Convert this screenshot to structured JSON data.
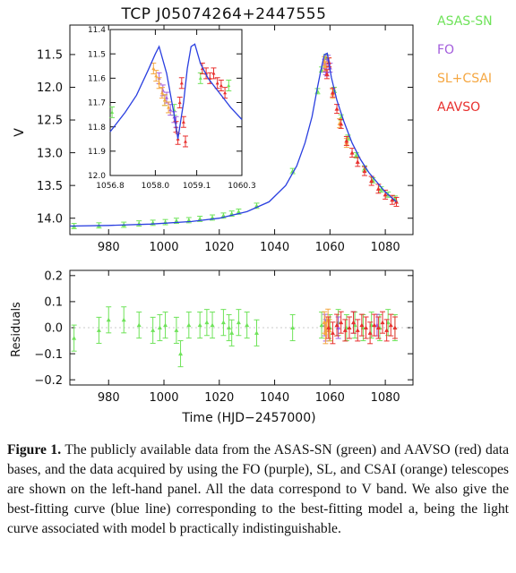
{
  "chart_data": [
    {
      "type": "line",
      "panel": "main light curve",
      "title": "TCP J05074264+2447555",
      "xlabel": "",
      "ylabel": "V",
      "xlim": [
        966,
        1090
      ],
      "ylim": [
        14.25,
        11.05
      ],
      "y_inverted": true,
      "xticks": [
        980,
        1000,
        1020,
        1040,
        1060,
        1080
      ],
      "yticks": [
        11.5,
        12.0,
        12.5,
        13.0,
        13.5,
        14.0
      ],
      "ytick_labels": [
        "11.5",
        "12.0",
        "12.5",
        "13.0",
        "13.5",
        "14.0"
      ],
      "legend": {
        "placement": "right, outside",
        "entries": [
          {
            "label": "ASAS-SN",
            "color": "#6fe35a"
          },
          {
            "label": "FO",
            "color": "#a35cdc"
          },
          {
            "label": "SL+CSAI",
            "color": "#f5a742"
          },
          {
            "label": "AAVSO",
            "color": "#e8302e"
          }
        ]
      },
      "series": [
        {
          "name": "ASAS-SN",
          "color": "#6fe35a",
          "x": [
            967.5,
            976.5,
            985.5,
            991.0,
            996.0,
            1000.5,
            1004.5,
            1009.0,
            1013.0,
            1017.5,
            1021.5,
            1024.5,
            1027.0,
            1033.5,
            1046.5,
            1055.5,
            1057.0,
            1058.5,
            1061.5,
            1064.0,
            1066.5,
            1069.5,
            1072.5,
            1075.5,
            1078.5,
            1081.0,
            1083.5
          ],
          "y": [
            14.12,
            14.11,
            14.1,
            14.08,
            14.07,
            14.06,
            14.04,
            14.03,
            14.01,
            13.99,
            13.96,
            13.93,
            13.9,
            13.81,
            13.28,
            12.06,
            11.73,
            11.54,
            12.04,
            12.46,
            12.77,
            13.04,
            13.24,
            13.42,
            13.56,
            13.64,
            13.7
          ],
          "yerr": 0.04
        },
        {
          "name": "FO",
          "color": "#a35cdc",
          "x": [
            1058.1,
            1058.3,
            1058.5,
            1058.9,
            1059.3,
            1060.0
          ],
          "y": [
            11.64,
            11.7,
            11.74,
            11.76,
            11.58,
            11.7
          ]
        },
        {
          "name": "SL+CSAI",
          "color": "#f5a742",
          "x": [
            1058.0,
            1058.3,
            1059.6,
            1061.0,
            1063.5,
            1066.0
          ],
          "y": [
            11.6,
            11.68,
            11.62,
            12.1,
            12.55,
            12.85
          ]
        },
        {
          "name": "AAVSO",
          "color": "#e8302e",
          "x": [
            1058.9,
            1059.6,
            1061.0,
            1062.5,
            1064.0,
            1066.0,
            1068.0,
            1070.0,
            1072.5,
            1075.0,
            1077.5,
            1080.0,
            1082.5,
            1084.0
          ],
          "y": [
            11.8,
            11.62,
            12.08,
            12.33,
            12.56,
            12.82,
            13.0,
            13.14,
            13.28,
            13.43,
            13.55,
            13.64,
            13.72,
            13.75
          ]
        },
        {
          "name": "best-fitting model",
          "color": "#2a3fe0",
          "x": [
            966,
            980,
            995,
            1010,
            1020,
            1030,
            1038,
            1044,
            1048,
            1051,
            1053.5,
            1055.5,
            1057.0,
            1058.0,
            1059.0,
            1060.5,
            1062.5,
            1065.0,
            1068.0,
            1071.0,
            1074.0,
            1077.0,
            1080.0,
            1084.0
          ],
          "y": [
            14.12,
            14.11,
            14.09,
            14.05,
            14.0,
            13.9,
            13.75,
            13.5,
            13.2,
            12.85,
            12.45,
            12.0,
            11.68,
            11.5,
            11.48,
            11.85,
            12.2,
            12.52,
            12.85,
            13.1,
            13.3,
            13.45,
            13.6,
            13.75
          ]
        }
      ]
    },
    {
      "type": "line",
      "panel": "inset zoom near peak",
      "xlim": [
        1056.8,
        1060.3
      ],
      "ylim": [
        12.0,
        11.4
      ],
      "y_inverted": true,
      "xticks": [
        1056.8,
        1058.0,
        1059.1,
        1060.3
      ],
      "xtick_labels": [
        "1056.8",
        "1058.0",
        "1059.1",
        "1060.3"
      ],
      "yticks": [
        11.4,
        11.5,
        11.6,
        11.7,
        11.8,
        11.9,
        12.0
      ],
      "ytick_labels": [
        "11.4",
        "11.5",
        "11.6",
        "11.7",
        "11.8",
        "11.9",
        "12.0"
      ],
      "series": [
        {
          "name": "ASAS-SN",
          "color": "#6fe35a",
          "x": [
            1056.85,
            1058.25,
            1058.5,
            1059.2,
            1059.95
          ],
          "y": [
            11.74,
            11.69,
            11.73,
            11.6,
            11.63
          ]
        },
        {
          "name": "FO",
          "color": "#a35cdc",
          "x": [
            1058.1,
            1058.2,
            1058.3,
            1058.4,
            1058.5,
            1058.55
          ],
          "y": [
            11.6,
            11.65,
            11.68,
            11.73,
            11.76,
            11.78
          ]
        },
        {
          "name": "SL+CSAI",
          "color": "#f5a742",
          "x": [
            1057.95,
            1058.02,
            1058.1,
            1058.18,
            1058.25,
            1058.35
          ],
          "y": [
            11.56,
            11.59,
            11.62,
            11.66,
            11.69,
            11.72
          ]
        },
        {
          "name": "AAVSO",
          "color": "#e8302e",
          "x": [
            1058.55,
            1058.6,
            1058.65,
            1058.7,
            1058.75,
            1058.8,
            1059.25,
            1059.35,
            1059.45,
            1059.55,
            1059.65,
            1059.75,
            1059.85
          ],
          "y": [
            11.8,
            11.85,
            11.7,
            11.62,
            11.78,
            11.86,
            11.56,
            11.58,
            11.6,
            11.58,
            11.62,
            11.63,
            11.66
          ]
        },
        {
          "name": "best-fitting model",
          "color": "#2a3fe0",
          "x": [
            1056.8,
            1057.2,
            1057.5,
            1057.8,
            1058.0,
            1058.1,
            1058.3,
            1058.5,
            1058.6,
            1058.75,
            1058.85,
            1058.95,
            1059.05,
            1059.2,
            1059.4,
            1059.7,
            1060.0,
            1060.3
          ],
          "y": [
            11.82,
            11.74,
            11.67,
            11.57,
            11.5,
            11.47,
            11.58,
            11.75,
            11.85,
            11.7,
            11.56,
            11.47,
            11.46,
            11.54,
            11.6,
            11.66,
            11.72,
            11.77
          ]
        }
      ]
    },
    {
      "type": "scatter",
      "panel": "residuals",
      "xlabel": "Time (HJD−2457000)",
      "ylabel": "Residuals",
      "xlim": [
        966,
        1090
      ],
      "ylim": [
        -0.22,
        0.22
      ],
      "xticks": [
        980,
        1000,
        1020,
        1040,
        1060,
        1080
      ],
      "yticks": [
        -0.2,
        -0.1,
        0.0,
        0.1,
        0.2
      ],
      "ytick_labels": [
        "−0.2",
        "−0.1",
        "0.0",
        "0.1",
        "0.2"
      ],
      "series": [
        {
          "name": "ASAS-SN",
          "color": "#6fe35a",
          "x": [
            967.5,
            976.5,
            980.0,
            985.5,
            991.0,
            996.0,
            998.5,
            1000.5,
            1004.5,
            1006.0,
            1009.0,
            1013.0,
            1015.5,
            1017.5,
            1021.5,
            1023.5,
            1024.5,
            1027.0,
            1030.0,
            1033.5,
            1046.5,
            1057.0,
            1060.0,
            1063.0,
            1066.0,
            1069.0,
            1072.0,
            1075.0,
            1078.0,
            1081.0,
            1083.5
          ],
          "y": [
            -0.04,
            -0.01,
            0.03,
            0.03,
            0.01,
            -0.01,
            0.0,
            0.01,
            -0.01,
            -0.1,
            0.01,
            0.01,
            0.02,
            0.01,
            0.02,
            0.0,
            -0.02,
            0.02,
            0.01,
            -0.02,
            0.0,
            0.01,
            0.0,
            0.02,
            0.0,
            0.01,
            0.0,
            0.01,
            0.0,
            0.02,
            0.0
          ],
          "yerr": 0.05
        },
        {
          "name": "FO",
          "color": "#a35cdc",
          "x": [
            1058.2,
            1058.5,
            1063.0,
            1068.5,
            1077.0
          ],
          "y": [
            0.01,
            -0.01,
            0.0,
            0.02,
            0.01
          ]
        },
        {
          "name": "SL+CSAI",
          "color": "#f5a742",
          "x": [
            1058.0,
            1058.4,
            1058.8,
            1059.3,
            1059.8
          ],
          "y": [
            0.02,
            -0.02,
            0.0,
            0.03,
            -0.01
          ]
        },
        {
          "name": "AAVSO",
          "color": "#e8302e",
          "x": [
            1059.5,
            1061.0,
            1062.5,
            1064.0,
            1065.5,
            1067.0,
            1068.5,
            1070.0,
            1071.5,
            1073.0,
            1074.5,
            1076.0,
            1077.5,
            1079.0,
            1080.5,
            1082.0,
            1083.5
          ],
          "y": [
            0.0,
            -0.02,
            0.01,
            0.02,
            -0.01,
            0.0,
            0.02,
            -0.01,
            0.01,
            0.0,
            -0.02,
            0.01,
            0.0,
            0.02,
            -0.01,
            0.01,
            0.0
          ]
        }
      ]
    }
  ],
  "caption": {
    "label": "Figure 1.",
    "text": "The publicly available data from the ASAS-SN (green) and AAVSO (red) data bases, and the data acquired by using the FO (purple), SL, and CSAI (orange) telescopes are shown on the left-hand panel. All the data correspond to V band. We also give the best-fitting curve (blue line) corresponding to the best-fitting model a, being the light curve associated with model b practically indistinguishable."
  }
}
